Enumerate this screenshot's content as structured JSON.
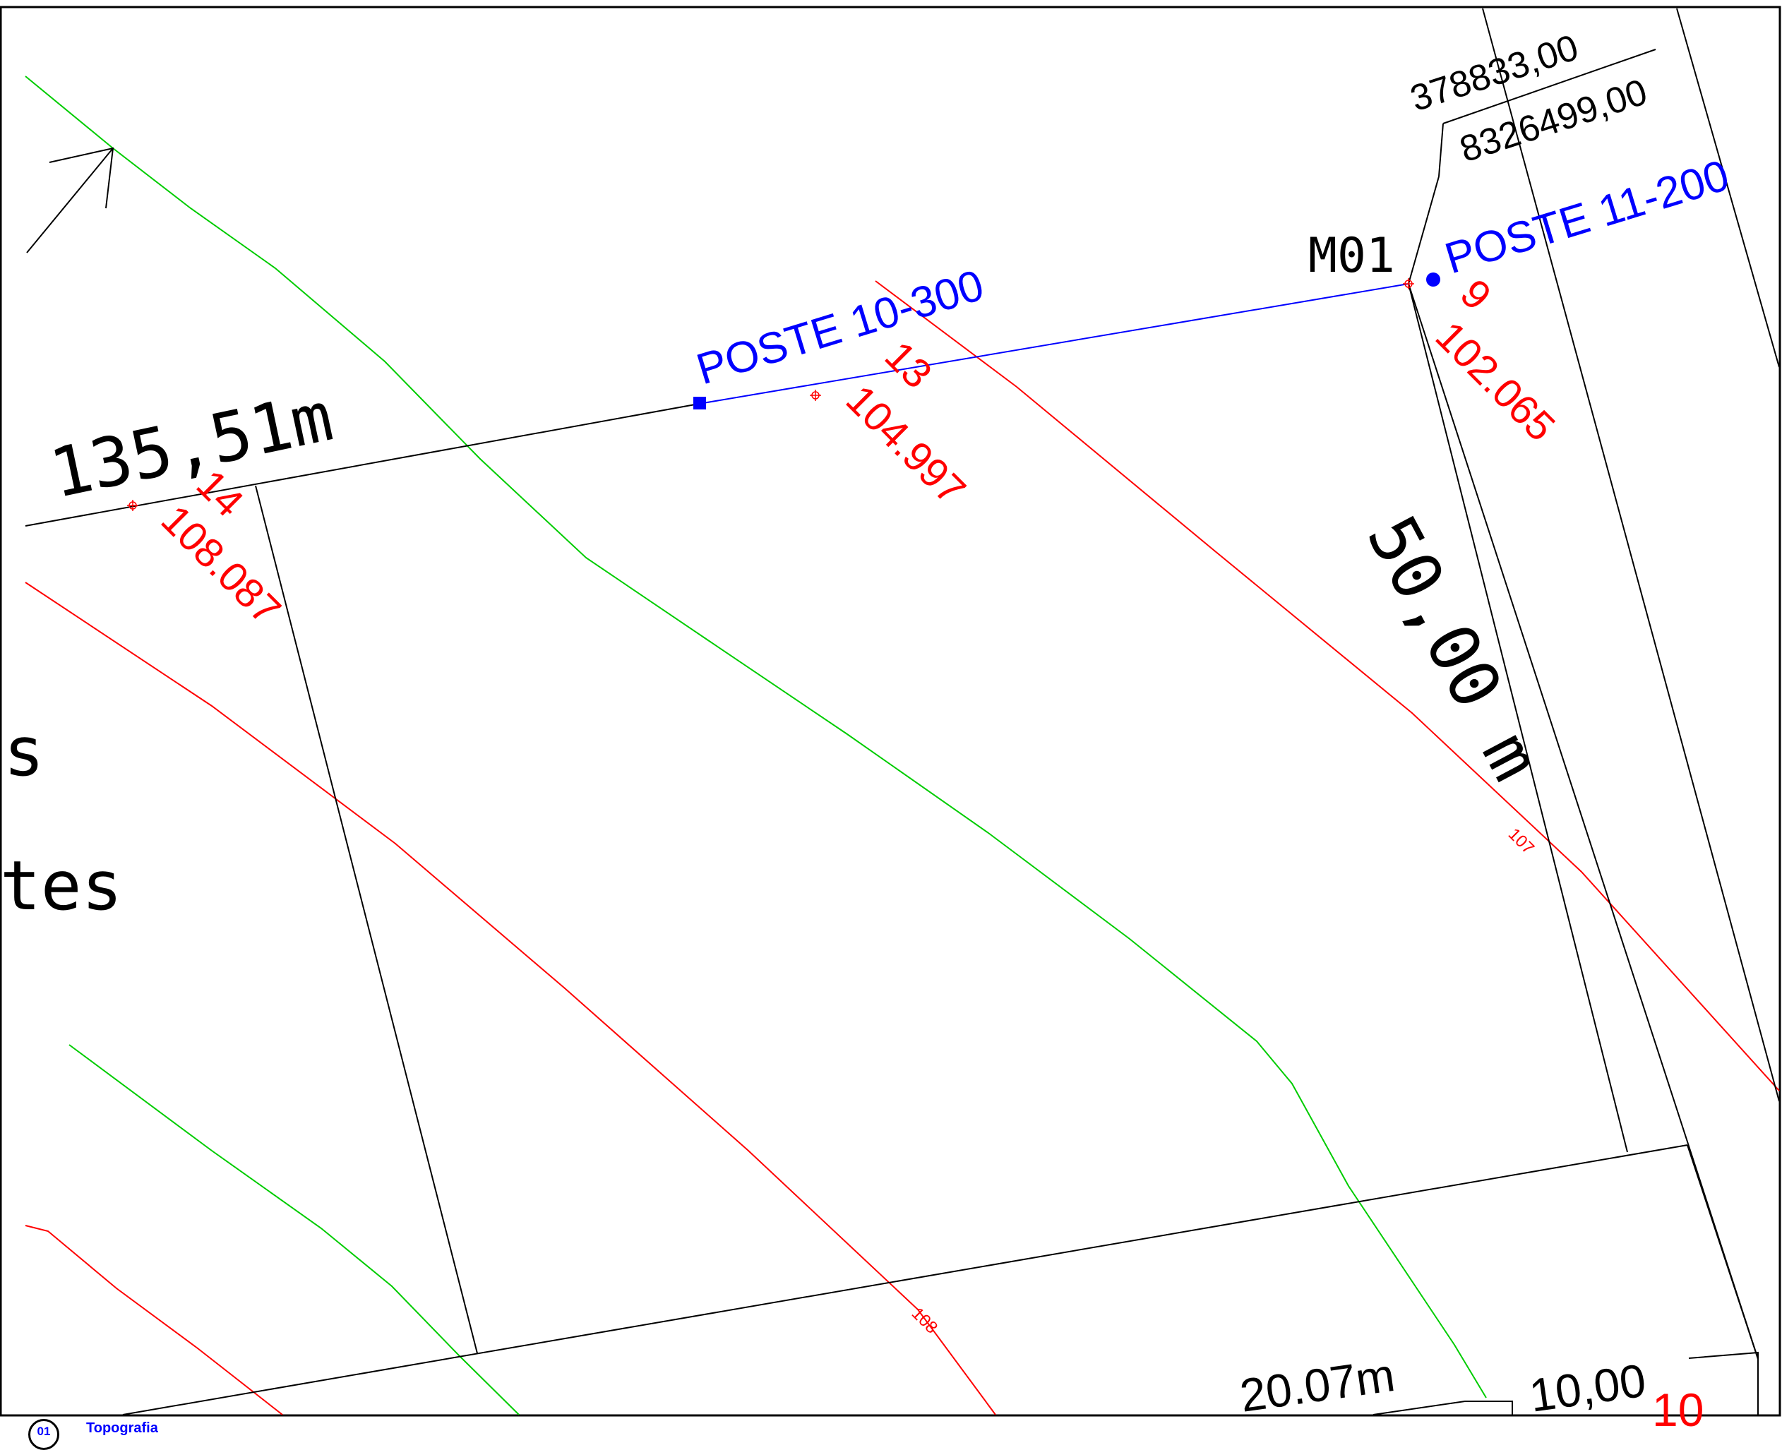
{
  "labels": {
    "coord_e": "378833,00",
    "coord_n": "8326499,00",
    "marco": "M01",
    "poste_a": "POSTE 11-200",
    "poste_b": "POSTE 10-300",
    "dim_top": "135,51m",
    "dim_right": "50,00 m",
    "dim_bottom_left": "20.07m",
    "dim_bottom_right": "10,00",
    "frag_s": "s",
    "frag_tes": "tes",
    "cut_red": "10"
  },
  "points": [
    {
      "id": "9",
      "elev": "102.065"
    },
    {
      "id": "13",
      "elev": "104.997"
    },
    {
      "id": "14",
      "elev": "108.087"
    }
  ],
  "contours": {
    "c107": "107",
    "c108": "108"
  },
  "title_block": {
    "number": "01",
    "title": "Topografia"
  },
  "colors": {
    "boundary": "#000000",
    "network": "#0000ff",
    "contour_red": "#ff0000",
    "contour_green": "#00cc00"
  }
}
